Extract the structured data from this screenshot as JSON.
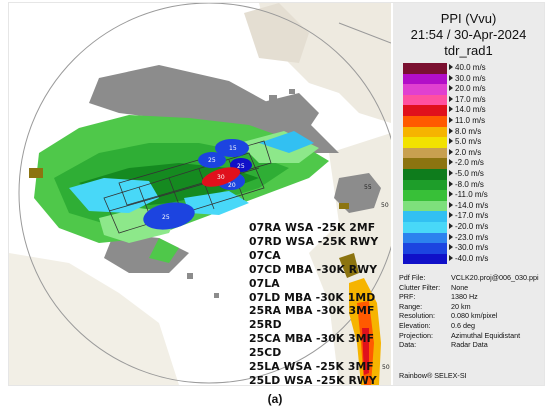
{
  "header": {
    "line1": "PPI (Vvu)",
    "line2": "21:54 / 30-Apr-2024",
    "line3": "tdr_rad1"
  },
  "scale": [
    {
      "label": "40.0 m/s",
      "color": "#7a1030"
    },
    {
      "label": "30.0 m/s",
      "color": "#b20ec8"
    },
    {
      "label": "20.0 m/s",
      "color": "#e040d0"
    },
    {
      "label": "17.0 m/s",
      "color": "#ff50a0"
    },
    {
      "label": "14.0 m/s",
      "color": "#e0101c"
    },
    {
      "label": "11.0 m/s",
      "color": "#ff5a00"
    },
    {
      "label": "8.0 m/s",
      "color": "#f6b400"
    },
    {
      "label": "5.0 m/s",
      "color": "#f2e200"
    },
    {
      "label": "2.0 m/s",
      "color": "#c8a050"
    },
    {
      "label": "-2.0 m/s",
      "color": "#8c7410"
    },
    {
      "label": "-5.0 m/s",
      "color": "#0e7c1c"
    },
    {
      "label": "-8.0 m/s",
      "color": "#1e9e2a"
    },
    {
      "label": "-11.0 m/s",
      "color": "#38c038"
    },
    {
      "label": "-14.0 m/s",
      "color": "#7ee07c"
    },
    {
      "label": "-17.0 m/s",
      "color": "#32c0f2"
    },
    {
      "label": "-20.0 m/s",
      "color": "#48d8f8"
    },
    {
      "label": "-23.0 m/s",
      "color": "#2c82ee"
    },
    {
      "label": "-30.0 m/s",
      "color": "#1c44e0"
    },
    {
      "label": "-40.0 m/s",
      "color": "#1010c8"
    }
  ],
  "info": [
    {
      "key": "Pdf File:",
      "value": "VCLK20.proj@006_030.ppi"
    },
    {
      "key": "Clutter Filter:",
      "value": "None"
    },
    {
      "key": "PRF:",
      "value": "1380 Hz"
    },
    {
      "key": "Range:",
      "value": "20 km"
    },
    {
      "key": "Resolution:",
      "value": "0.080 km/pixel"
    },
    {
      "key": "Elevation:",
      "value": "0.6 deg"
    },
    {
      "key": "Projection:",
      "value": "Azimuthal Equidistant"
    },
    {
      "key": "Data:",
      "value": "Radar Data"
    }
  ],
  "brand": "Rainbow® SELEX-SI",
  "runways": [
    "07RA WSA -25K 2MF",
    "07RD WSA -25K RWY",
    "07CA",
    "07CD MBA -30K RWY",
    "07LA",
    "07LD MBA -30K 1MD",
    "25RA MBA -30K 3MF",
    "25RD",
    "25CA MBA -30K 3MF",
    "25CD",
    "25LA WSA -25K 3MF",
    "25LD WSA -25K RWY"
  ],
  "map_labels": {
    "blob_15": "15",
    "blob_25a": "25",
    "blob_25b": "25",
    "blob_20": "20",
    "blob_30": "30",
    "blob_25c": "25",
    "label_55": "55",
    "label_50": "50",
    "label_50b": "50"
  },
  "caption": "(a)"
}
